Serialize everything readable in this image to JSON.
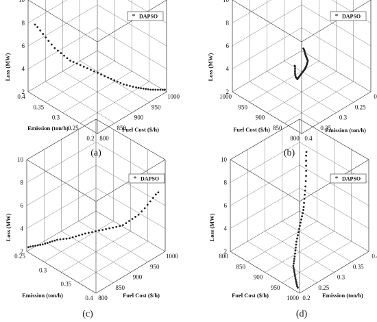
{
  "chart_data": [
    {
      "type": "scatter",
      "label": "(a)",
      "legend": "DAPSO",
      "xlabel": "Emission (ton/h)",
      "ylabel": "Fuel Cost ($/h)",
      "zlabel": "Loss (MW)",
      "xticks": [
        "0.4",
        "0.35",
        "0.3",
        "0.25",
        "0.2"
      ],
      "yticks": [
        "800",
        "850",
        "900",
        "950",
        "1000"
      ],
      "zticks": [
        "2",
        "4",
        "6",
        "8",
        "10"
      ],
      "xlim": [
        0.2,
        0.4
      ],
      "ylim": [
        800,
        1000
      ],
      "zlim": [
        2,
        10
      ],
      "x": [
        0.38,
        0.377,
        0.373,
        0.369,
        0.365,
        0.361,
        0.357,
        0.353,
        0.349,
        0.345,
        0.341,
        0.337,
        0.333,
        0.329,
        0.325,
        0.321,
        0.317,
        0.313,
        0.309,
        0.305,
        0.301,
        0.297,
        0.293,
        0.289,
        0.285,
        0.281,
        0.277,
        0.273,
        0.269,
        0.265,
        0.261,
        0.257,
        0.253,
        0.249,
        0.245,
        0.241,
        0.237,
        0.233,
        0.229,
        0.225,
        0.221,
        0.217,
        0.213,
        0.209,
        0.205
      ],
      "y": [
        800,
        804,
        808,
        812,
        816,
        820,
        825,
        830,
        835,
        840,
        845,
        850,
        855,
        860,
        866,
        872,
        878,
        884,
        890,
        896,
        902,
        908,
        914,
        920,
        925,
        930,
        935,
        940,
        945,
        950,
        955,
        960,
        965,
        968,
        971,
        974,
        977,
        980,
        983,
        986,
        989,
        992,
        995,
        998,
        1000
      ],
      "z": [
        7.5,
        7.3,
        7.0,
        6.7,
        6.4,
        6.1,
        5.8,
        5.5,
        5.3,
        5.1,
        4.9,
        4.7,
        4.5,
        4.4,
        4.3,
        4.2,
        4.1,
        4.0,
        3.9,
        3.8,
        3.7,
        3.6,
        3.5,
        3.4,
        3.3,
        3.2,
        3.1,
        3.0,
        2.9,
        2.85,
        2.8,
        2.75,
        2.7,
        2.65,
        2.6,
        2.55,
        2.5,
        2.45,
        2.4,
        2.38,
        2.36,
        2.34,
        2.32,
        2.3,
        2.28
      ]
    },
    {
      "type": "scatter",
      "label": "(b)",
      "legend": "DAPSO",
      "xlabel": "Emission (ton/h)",
      "ylabel": "Fuel Cost ($/h)",
      "zlabel": "Loss (MW)",
      "xticks": [
        "0.2",
        "0.25",
        "0.3",
        "0.35",
        "0.4"
      ],
      "yticks": [
        "800",
        "850",
        "900",
        "950",
        "1000"
      ],
      "zticks": [
        "2",
        "4",
        "6",
        "8",
        "10"
      ],
      "xlim": [
        0.2,
        0.4
      ],
      "ylim": [
        800,
        1000
      ],
      "zlim": [
        2,
        10
      ],
      "x": [
        0.38,
        0.377,
        0.373,
        0.369,
        0.365,
        0.361,
        0.357,
        0.353,
        0.349,
        0.345,
        0.341,
        0.337,
        0.333,
        0.329,
        0.325,
        0.321,
        0.317,
        0.313,
        0.309,
        0.305,
        0.301,
        0.297,
        0.293,
        0.289,
        0.285,
        0.281,
        0.277,
        0.273,
        0.269,
        0.265,
        0.261,
        0.257,
        0.253,
        0.249,
        0.245,
        0.241,
        0.237,
        0.233,
        0.229,
        0.225,
        0.221,
        0.217,
        0.213,
        0.209,
        0.205
      ],
      "y": [
        800,
        804,
        808,
        812,
        816,
        820,
        825,
        830,
        835,
        840,
        845,
        850,
        855,
        860,
        866,
        872,
        878,
        884,
        890,
        896,
        902,
        908,
        914,
        920,
        925,
        930,
        935,
        940,
        945,
        950,
        955,
        960,
        965,
        968,
        971,
        974,
        977,
        980,
        983,
        986,
        989,
        992,
        995,
        998,
        1000
      ],
      "z": [
        7.5,
        7.3,
        7.0,
        6.7,
        6.4,
        6.1,
        5.8,
        5.5,
        5.3,
        5.1,
        4.9,
        4.7,
        4.5,
        4.4,
        4.3,
        4.2,
        4.1,
        4.0,
        3.9,
        3.8,
        3.7,
        3.6,
        3.5,
        3.4,
        3.3,
        3.2,
        3.1,
        3.0,
        2.9,
        2.85,
        2.8,
        2.75,
        2.7,
        2.65,
        2.6,
        2.55,
        2.5,
        2.45,
        2.4,
        2.38,
        2.36,
        2.34,
        2.32,
        2.3,
        2.28
      ]
    },
    {
      "type": "scatter",
      "label": "(c)",
      "legend": "DAPSO",
      "xlabel": "Emission (ton/h)",
      "ylabel": "Fuel Cost ($/h)",
      "zlabel": "Loss (MW)",
      "xticks": [
        "0.25",
        "0.3",
        "0.35",
        "0.4"
      ],
      "yticks": [
        "800",
        "850",
        "900",
        "950",
        "1000"
      ],
      "zticks": [
        "2",
        "4",
        "6",
        "8",
        "10"
      ],
      "xlim": [
        0.2,
        0.4
      ],
      "ylim": [
        800,
        1000
      ],
      "zlim": [
        2,
        10
      ],
      "x": [
        0.38,
        0.377,
        0.373,
        0.369,
        0.365,
        0.361,
        0.357,
        0.353,
        0.349,
        0.345,
        0.341,
        0.337,
        0.333,
        0.329,
        0.325,
        0.321,
        0.317,
        0.313,
        0.309,
        0.305,
        0.301,
        0.297,
        0.293,
        0.289,
        0.285,
        0.281,
        0.277,
        0.273,
        0.269,
        0.265,
        0.261,
        0.257,
        0.253,
        0.249,
        0.245,
        0.241,
        0.237,
        0.233,
        0.229,
        0.225,
        0.221,
        0.217,
        0.213,
        0.209,
        0.205
      ],
      "y": [
        800,
        804,
        808,
        812,
        816,
        820,
        825,
        830,
        835,
        840,
        845,
        850,
        855,
        860,
        866,
        872,
        878,
        884,
        890,
        896,
        902,
        908,
        914,
        920,
        925,
        930,
        935,
        940,
        945,
        950,
        955,
        960,
        965,
        968,
        971,
        974,
        977,
        980,
        983,
        986,
        989,
        992,
        995,
        998,
        1000
      ],
      "z": [
        7.5,
        7.3,
        7.0,
        6.7,
        6.4,
        6.1,
        5.8,
        5.5,
        5.3,
        5.1,
        4.9,
        4.7,
        4.5,
        4.4,
        4.3,
        4.2,
        4.1,
        4.0,
        3.9,
        3.8,
        3.7,
        3.6,
        3.5,
        3.4,
        3.3,
        3.2,
        3.1,
        3.0,
        2.9,
        2.85,
        2.8,
        2.75,
        2.7,
        2.65,
        2.6,
        2.55,
        2.5,
        2.45,
        2.4,
        2.38,
        2.36,
        2.34,
        2.32,
        2.3,
        2.28
      ]
    },
    {
      "type": "scatter",
      "label": "(d)",
      "legend": "DAPSO",
      "xlabel": "Emission (ton/h)",
      "ylabel": "Fuel Cost ($/h)",
      "zlabel": "Loss (MW)",
      "xticks": [
        "0.4",
        "0.35",
        "0.3",
        "0.25",
        "0.2"
      ],
      "yticks": [
        "1000",
        "950",
        "900",
        "850",
        "800"
      ],
      "zticks": [
        "2",
        "4",
        "6",
        "8",
        "10"
      ],
      "xlim": [
        0.2,
        0.4
      ],
      "ylim": [
        800,
        1000
      ],
      "zlim": [
        2,
        10
      ],
      "x": [
        0.38,
        0.377,
        0.373,
        0.369,
        0.365,
        0.361,
        0.357,
        0.353,
        0.349,
        0.345,
        0.341,
        0.337,
        0.333,
        0.329,
        0.325,
        0.321,
        0.317,
        0.313,
        0.309,
        0.305,
        0.301,
        0.297,
        0.293,
        0.289,
        0.285,
        0.281,
        0.277,
        0.273,
        0.269,
        0.265,
        0.261,
        0.257,
        0.253,
        0.249,
        0.245,
        0.241,
        0.237,
        0.233,
        0.229,
        0.225,
        0.221,
        0.217,
        0.213,
        0.209,
        0.205
      ],
      "y": [
        800,
        804,
        808,
        812,
        816,
        820,
        825,
        830,
        835,
        840,
        845,
        850,
        855,
        860,
        866,
        872,
        878,
        884,
        890,
        896,
        902,
        908,
        914,
        920,
        925,
        930,
        935,
        940,
        945,
        950,
        955,
        960,
        965,
        968,
        971,
        974,
        977,
        980,
        983,
        986,
        989,
        992,
        995,
        998,
        1000
      ],
      "z": [
        7.5,
        7.3,
        7.0,
        6.7,
        6.4,
        6.1,
        5.8,
        5.5,
        5.3,
        5.1,
        4.9,
        4.7,
        4.5,
        4.4,
        4.3,
        4.2,
        4.1,
        4.0,
        3.9,
        3.8,
        3.7,
        3.6,
        3.5,
        3.4,
        3.3,
        3.2,
        3.1,
        3.0,
        2.9,
        2.85,
        2.8,
        2.75,
        2.7,
        2.65,
        2.6,
        2.55,
        2.5,
        2.45,
        2.4,
        2.38,
        2.36,
        2.34,
        2.32,
        2.3,
        2.28
      ]
    }
  ]
}
